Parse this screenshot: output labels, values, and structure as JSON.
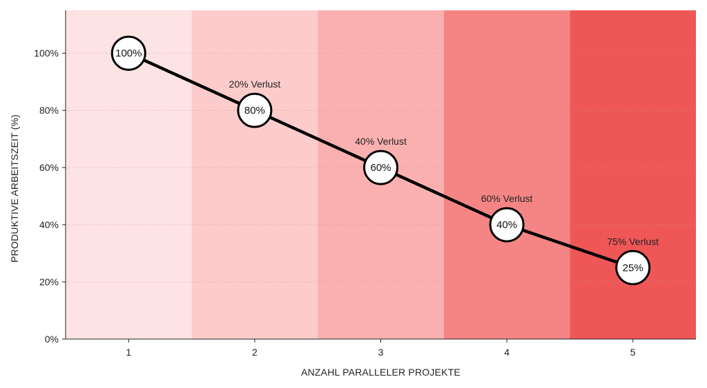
{
  "chart_data": {
    "type": "line",
    "title": "",
    "xlabel": "ANZAHL PARALLELER PROJEKTE",
    "ylabel": "PRODUKTIVE ARBEITSZEIT (%)",
    "x": [
      1,
      2,
      3,
      4,
      5
    ],
    "x_tick_labels": [
      "1",
      "2",
      "3",
      "4",
      "5"
    ],
    "y_ticks": [
      0,
      20,
      40,
      60,
      80,
      100
    ],
    "y_tick_labels": [
      "0%",
      "20%",
      "40%",
      "60%",
      "80%",
      "100%"
    ],
    "xlim": [
      0.5,
      5.5
    ],
    "ylim": [
      0,
      115
    ],
    "grid": "horizontal dotted",
    "series": [
      {
        "values": [
          100,
          80,
          60,
          40,
          25
        ],
        "point_labels": [
          "100%",
          "80%",
          "60%",
          "40%",
          "25%"
        ],
        "color": "#000000"
      }
    ],
    "annotations": [
      {
        "x": 2,
        "text": "20% Verlust"
      },
      {
        "x": 3,
        "text": "40% Verlust"
      },
      {
        "x": 4,
        "text": "60% Verlust"
      },
      {
        "x": 5,
        "text": "75% Verlust"
      }
    ],
    "band_colors": [
      "#fde3e3",
      "#fccccc",
      "#fbb0b0",
      "#f58585",
      "#ef5757"
    ]
  }
}
